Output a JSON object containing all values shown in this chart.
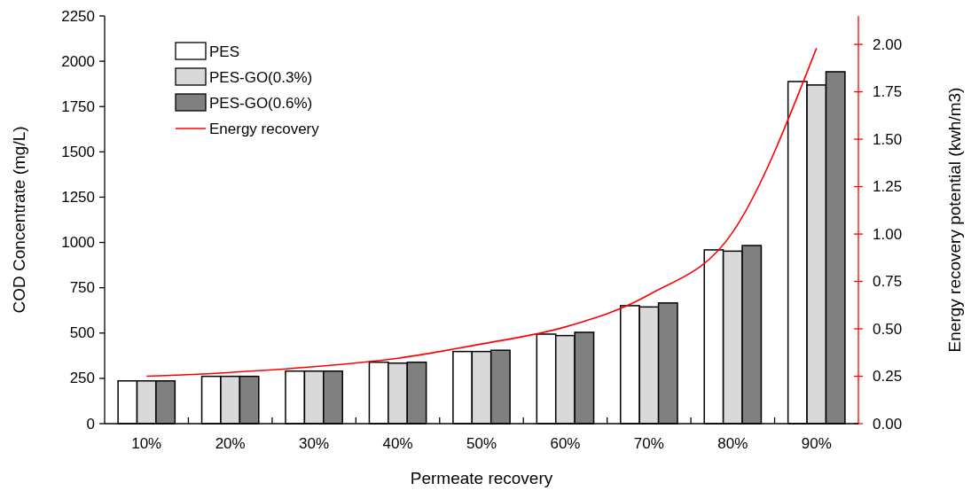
{
  "chart_data": {
    "type": "bar",
    "xlabel": "Permeate recovery",
    "ylabel": "COD Concentrate (mg/L)",
    "y2label": "Energy recovery potential (kwh/m3)",
    "categories": [
      "10%",
      "20%",
      "30%",
      "40%",
      "50%",
      "60%",
      "70%",
      "80%",
      "90%"
    ],
    "series": [
      {
        "name": "PES",
        "color": "#ffffff",
        "values": [
          236,
          261,
          290,
          339,
          398,
          494,
          651,
          959,
          1888
        ]
      },
      {
        "name": "PES-GO(0.3%)",
        "color": "#d9d9d9",
        "values": [
          236,
          261,
          290,
          334,
          398,
          486,
          644,
          952,
          1869
        ]
      },
      {
        "name": "PES-GO(0.6%)",
        "color": "#808080",
        "values": [
          236,
          261,
          290,
          339,
          405,
          504,
          666,
          983,
          1942
        ]
      },
      {
        "name": "Energy recovery",
        "type": "line",
        "axis": "y2",
        "color": "#ff0000",
        "values": [
          0.25,
          0.27,
          0.3,
          0.345,
          0.42,
          0.51,
          0.68,
          1.01,
          1.98
        ]
      }
    ],
    "ylim": [
      0,
      2250
    ],
    "yticks": [
      0,
      250,
      500,
      750,
      1000,
      1250,
      1500,
      1750,
      2000,
      2250
    ],
    "y2lim": [
      0,
      2.15
    ],
    "y2ticks": [
      {
        "value": 0,
        "label": "0.00"
      },
      {
        "value": 0.25,
        "label": "0.25"
      },
      {
        "value": 0.5,
        "label": "0.50"
      },
      {
        "value": 0.75,
        "label": "0.75"
      },
      {
        "value": 1,
        "label": "1.00"
      },
      {
        "value": 1.25,
        "label": "1.25"
      },
      {
        "value": 1.5,
        "label": "1.50"
      },
      {
        "value": 1.75,
        "label": "1.75"
      },
      {
        "value": 2,
        "label": "2.00"
      }
    ],
    "legend": "top left",
    "grid": false
  }
}
